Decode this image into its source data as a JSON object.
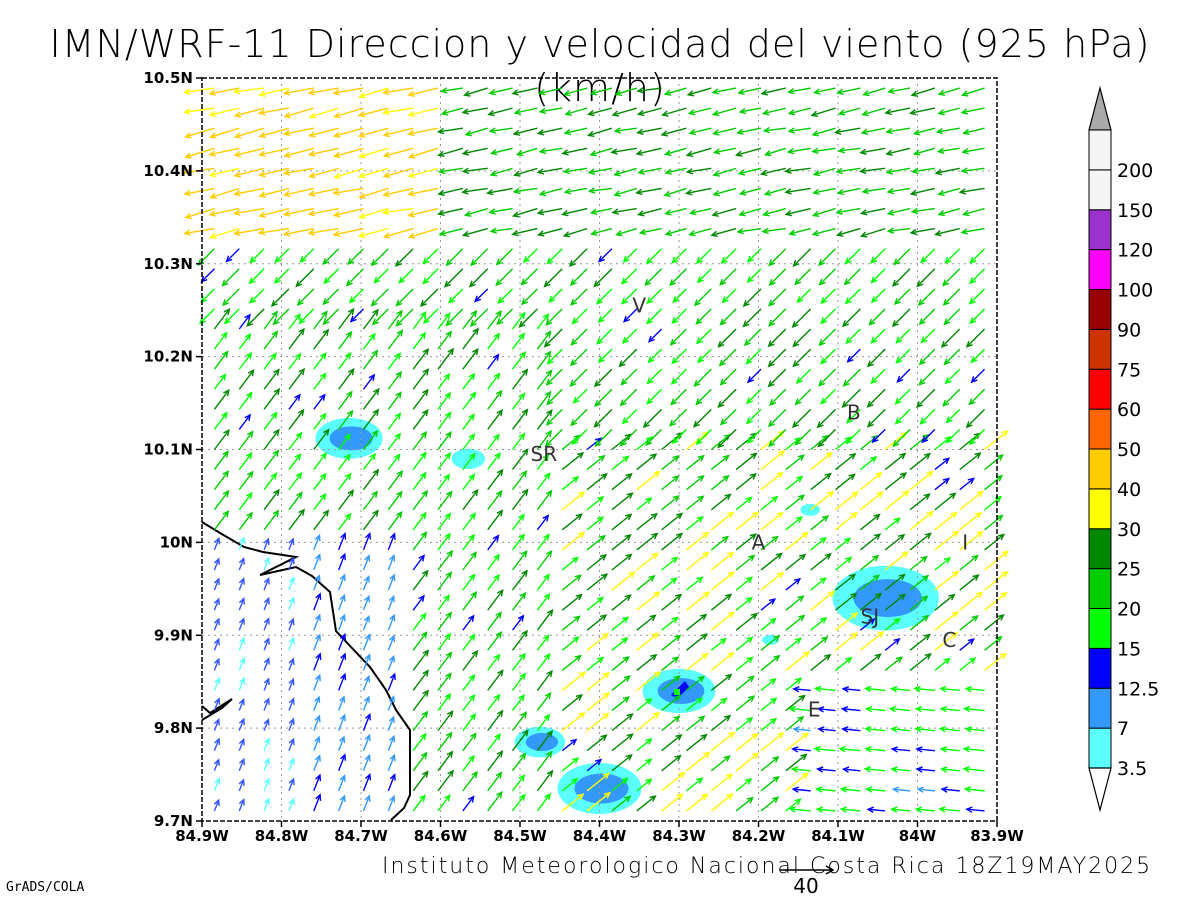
{
  "title": "IMN/WRF-11 Direccion y velocidad del viento (925 hPa)(km/h)",
  "footer": {
    "institution": "Instituto Meteorologico Nacional Costa Rica 18Z19MAY2025",
    "software": "GrADS/COLA",
    "reference_vector_label": "40"
  },
  "map": {
    "lon_range": [
      -84.9,
      -83.9
    ],
    "lat_range": [
      9.7,
      10.5
    ],
    "x_ticks": [
      "84.9W",
      "84.8W",
      "84.7W",
      "84.6W",
      "84.5W",
      "84.4W",
      "84.3W",
      "84.2W",
      "84.1W",
      "84W",
      "83.9W"
    ],
    "y_ticks": [
      "9.7N",
      "9.8N",
      "9.9N",
      "10N",
      "10.1N",
      "10.2N",
      "10.3N",
      "10.4N",
      "10.5N"
    ],
    "places": [
      {
        "label": "V",
        "lon": -84.35,
        "lat": 10.255
      },
      {
        "label": "SR",
        "lon": -84.47,
        "lat": 10.095
      },
      {
        "label": "B",
        "lon": -84.08,
        "lat": 10.14
      },
      {
        "label": "A",
        "lon": -84.2,
        "lat": 10.0
      },
      {
        "label": "I",
        "lon": -83.94,
        "lat": 10.0
      },
      {
        "label": "SJ",
        "lon": -84.06,
        "lat": 9.92
      },
      {
        "label": "C",
        "lon": -83.96,
        "lat": 9.895
      },
      {
        "label": "E",
        "lon": -84.13,
        "lat": 9.82
      }
    ],
    "precip_blobs": [
      {
        "lon": -84.715,
        "lat": 10.112,
        "size": 1.2,
        "core": true
      },
      {
        "lon": -84.565,
        "lat": 10.09,
        "size": 0.6,
        "core": false
      },
      {
        "lon": -84.04,
        "lat": 9.94,
        "size": 1.9,
        "core": true
      },
      {
        "lon": -84.3,
        "lat": 9.84,
        "size": 1.3,
        "core": true,
        "peak": true
      },
      {
        "lon": -84.475,
        "lat": 9.785,
        "size": 0.9,
        "core": true
      },
      {
        "lon": -84.4,
        "lat": 9.735,
        "size": 1.5,
        "core": true
      },
      {
        "lon": -84.135,
        "lat": 10.035,
        "size": 0.35,
        "core": false
      },
      {
        "lon": -84.185,
        "lat": 9.895,
        "size": 0.3,
        "core": false
      }
    ]
  },
  "colorbar": {
    "labels": [
      "3.5",
      "7",
      "12.5",
      "15",
      "20",
      "25",
      "30",
      "40",
      "50",
      "60",
      "75",
      "90",
      "100",
      "120",
      "150",
      "200"
    ],
    "colors": [
      "#5cffff",
      "#3399ff",
      "#0000ff",
      "#00ff00",
      "#00cc00",
      "#008800",
      "#ffff00",
      "#ffcc00",
      "#ff6600",
      "#ff0000",
      "#cc3300",
      "#990000",
      "#ff00ff",
      "#9933cc",
      "#f5f5f5",
      "#aaaaaa"
    ]
  }
}
